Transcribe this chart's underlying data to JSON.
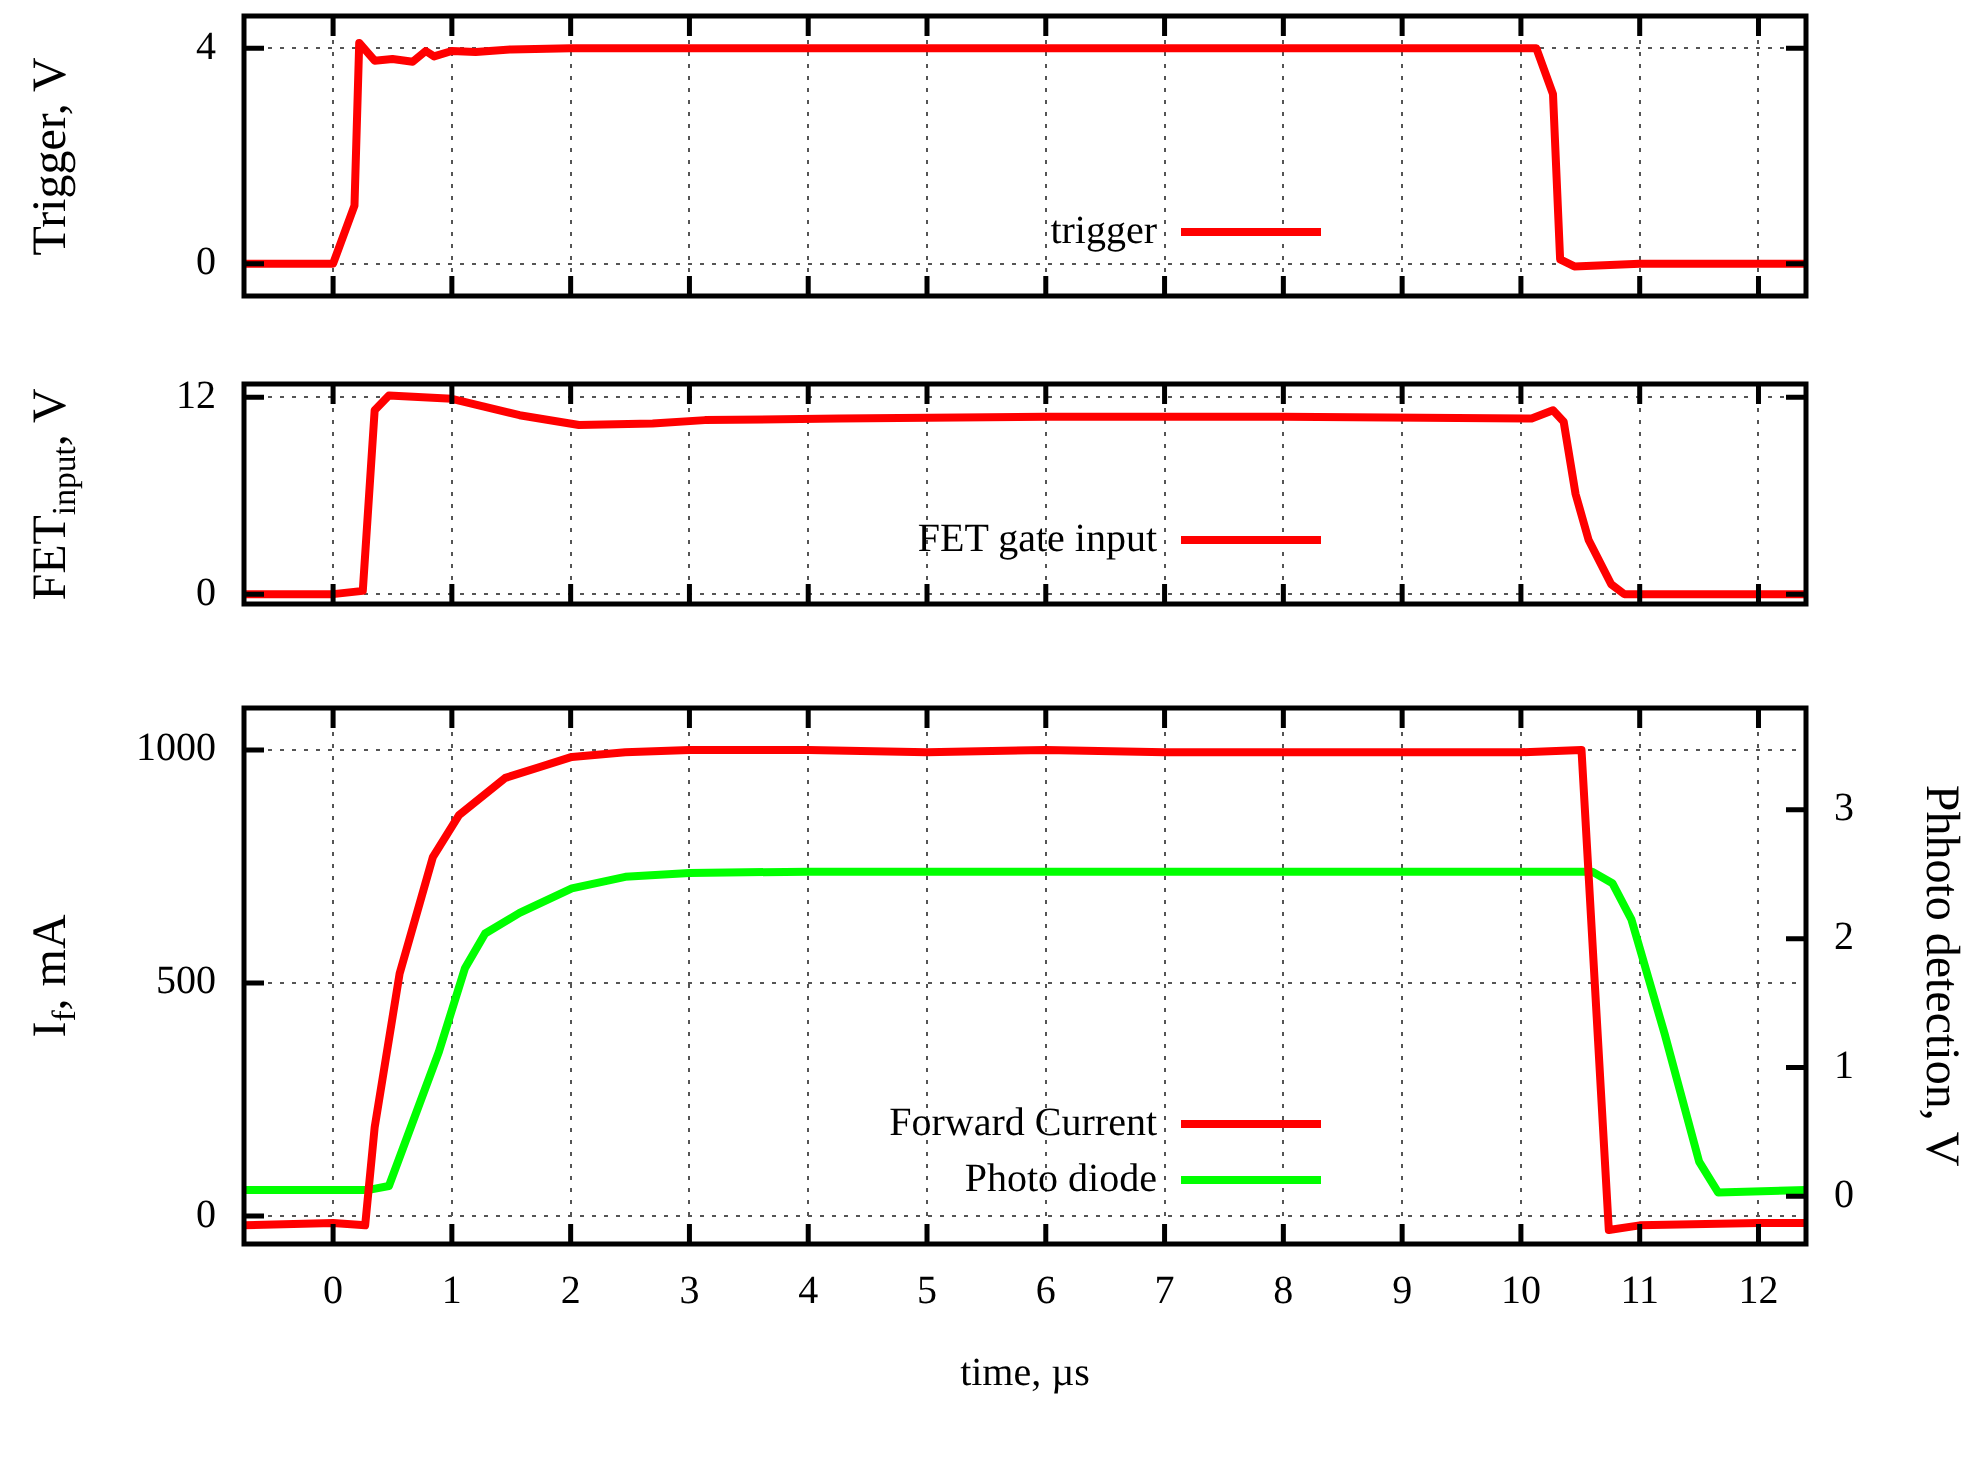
{
  "chart_data": [
    {
      "type": "line",
      "ylabel": "Trigger, V",
      "xlim": [
        -0.75,
        12.4
      ],
      "ylim": [
        -0.6,
        4.6
      ],
      "xticks": [
        0,
        1,
        2,
        3,
        4,
        5,
        6,
        7,
        8,
        9,
        10,
        11,
        12
      ],
      "yticks": [
        0,
        4
      ],
      "grid": true,
      "legend": "bottom",
      "tick_labels": "y",
      "series": [
        {
          "name": "trigger",
          "color": "#ff0000",
          "x": [
            -0.75,
            0,
            0.18,
            0.22,
            0.35,
            0.5,
            0.67,
            0.78,
            0.85,
            1.0,
            1.2,
            1.5,
            2,
            3,
            5,
            8,
            10,
            10.13,
            10.27,
            10.33,
            10.45,
            11,
            12.4
          ],
          "values": [
            0,
            0,
            1.08,
            4.1,
            3.77,
            3.8,
            3.75,
            3.95,
            3.85,
            3.95,
            3.93,
            3.98,
            4,
            4,
            4,
            4,
            4,
            4,
            3.15,
            0.08,
            -0.05,
            0,
            0
          ]
        }
      ]
    },
    {
      "type": "line",
      "ylabel": "FET$_{input}$, V",
      "xlim": [
        -0.75,
        12.4
      ],
      "ylim": [
        -0.6,
        12.8
      ],
      "xticks": [
        0,
        1,
        2,
        3,
        4,
        5,
        6,
        7,
        8,
        9,
        10,
        11,
        12
      ],
      "yticks": [
        0,
        12
      ],
      "grid": true,
      "legend": "bottom",
      "tick_labels": "y",
      "series": [
        {
          "name": "FET gate input",
          "color": "#ff0000",
          "x": [
            -0.75,
            0,
            0.25,
            0.35,
            0.47,
            1.0,
            1.57,
            2.07,
            2.69,
            3.13,
            4.26,
            6,
            8,
            10.09,
            10.27,
            10.36,
            10.46,
            10.57,
            10.76,
            10.87,
            11.5,
            12.4
          ],
          "values": [
            0,
            0,
            0.2,
            11.2,
            12.1,
            11.9,
            10.9,
            10.3,
            10.4,
            10.6,
            10.7,
            10.8,
            10.8,
            10.7,
            11.2,
            10.5,
            6.1,
            3.3,
            0.6,
            0,
            0,
            0
          ]
        }
      ]
    },
    {
      "type": "line",
      "ylabel": "I$_{f}$, mA",
      "y2label": "Phhoto detection, V",
      "xlabel": "time, µs",
      "xlim": [
        -0.75,
        12.4
      ],
      "ylim": [
        -60,
        1090
      ],
      "xticks": [
        0,
        1,
        2,
        3,
        4,
        5,
        6,
        7,
        8,
        9,
        10,
        11,
        12
      ],
      "yticks": [
        0,
        500,
        1000
      ],
      "y2lim": [
        -0.37,
        3.79
      ],
      "y2ticks": [
        0,
        1,
        2,
        3
      ],
      "grid": true,
      "legend": "bottom",
      "series": [
        {
          "name": "Forward Current",
          "color": "#ff0000",
          "x": [
            -0.75,
            0,
            0.27,
            0.35,
            0.56,
            0.84,
            1.06,
            1.45,
            2.01,
            2.46,
            3,
            4,
            5,
            6,
            7,
            8,
            9,
            10,
            10.51,
            10.74,
            11,
            12,
            12.4
          ],
          "values": [
            -20,
            -15,
            -20,
            190,
            520,
            770,
            860,
            940,
            985,
            995,
            1000,
            1000,
            995,
            1000,
            995,
            995,
            995,
            995,
            1000,
            -30,
            -20,
            -15,
            -15
          ]
        },
        {
          "name": "Photo diode",
          "color": "#00ff00",
          "x": [
            -0.75,
            0.3,
            0.47,
            0.89,
            1.11,
            1.28,
            1.57,
            2.01,
            2.46,
            3,
            4,
            6,
            8,
            10,
            10.6,
            10.77,
            10.93,
            11.21,
            11.5,
            11.66,
            12.4
          ],
          "values": [
            0.05,
            0.05,
            0.08,
            1.12,
            1.77,
            2.04,
            2.2,
            2.39,
            2.48,
            2.51,
            2.52,
            2.52,
            2.52,
            2.52,
            2.52,
            2.43,
            2.15,
            1.26,
            0.27,
            0.03,
            0.05
          ],
          "axis": "y2"
        }
      ]
    }
  ]
}
